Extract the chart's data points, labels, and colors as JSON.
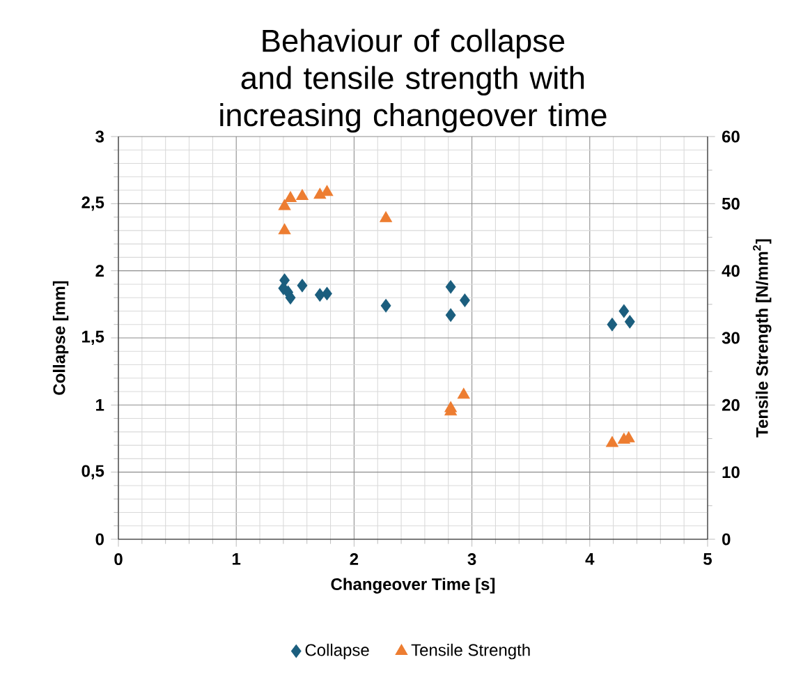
{
  "chart_data": {
    "type": "scatter",
    "title": "Behaviour of collapse and tensile strength with increasing changeover time",
    "xlabel": "Changeover Time [s]",
    "ylabel": "Collapse [mm]",
    "y2label": "Tensile Strength [N/mm$^{2}$]",
    "xlim": [
      0,
      5
    ],
    "xticks": [
      0,
      1,
      2,
      3,
      4,
      5
    ],
    "ylim": [
      0,
      3
    ],
    "yticks": [
      0,
      {
        "value": 0.5,
        "label": "0,5"
      },
      1,
      {
        "value": 1.5,
        "label": "1,5"
      },
      2,
      {
        "value": 2.5,
        "label": "2,5"
      },
      3
    ],
    "y2lim": [
      0,
      60
    ],
    "y2ticks": [
      0,
      10,
      20,
      30,
      40,
      50,
      60
    ],
    "grid": true,
    "legend": "bottom",
    "series": [
      {
        "name": "Collapse",
        "color": "#1b5e7e",
        "marker": "diamond",
        "x": [
          1.41,
          1.4,
          1.44,
          1.46,
          1.56,
          1.71,
          1.77,
          2.27,
          2.82,
          2.82,
          2.94,
          4.19,
          4.29,
          4.34
        ],
        "values": [
          1.93,
          1.87,
          1.84,
          1.8,
          1.89,
          1.82,
          1.83,
          1.74,
          1.88,
          1.67,
          1.78,
          1.6,
          1.7,
          1.62
        ]
      },
      {
        "name": "Tensile Strength",
        "color": "#ed7d31",
        "marker": "triangle",
        "axis": "y2",
        "x": [
          1.41,
          1.41,
          1.46,
          1.56,
          1.71,
          1.77,
          2.27,
          2.82,
          2.82,
          2.93,
          4.19,
          4.29,
          4.33
        ],
        "values": [
          49.6,
          46.0,
          50.8,
          51.1,
          51.3,
          51.7,
          47.8,
          19.5,
          19.0,
          21.5,
          14.3,
          14.8,
          15.0
        ]
      }
    ]
  }
}
